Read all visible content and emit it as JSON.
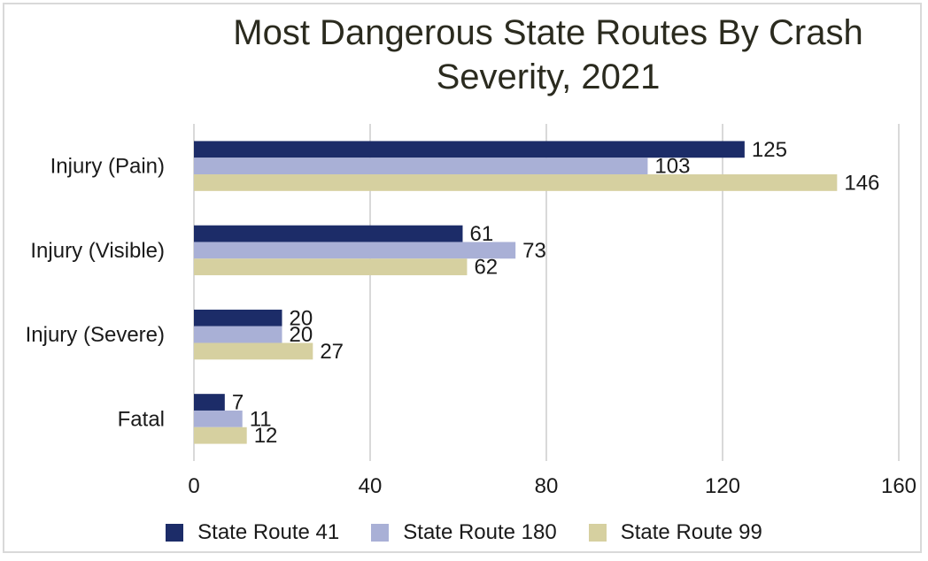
{
  "chart_data": {
    "type": "bar",
    "orientation": "horizontal",
    "title": "Most Dangerous State Routes By Crash Severity, 2021",
    "title_lines": [
      "Most Dangerous State Routes By Crash",
      "Severity, 2021"
    ],
    "categories": [
      "Injury (Pain)",
      "Injury (Visible)",
      "Injury (Severe)",
      "Fatal"
    ],
    "series": [
      {
        "name": "State Route 41",
        "values": [
          125,
          61,
          20,
          7
        ],
        "color": "#1c2c68"
      },
      {
        "name": "State Route 180",
        "values": [
          103,
          73,
          20,
          11
        ],
        "color": "#a9b0d6"
      },
      {
        "name": "State Route 99",
        "values": [
          146,
          62,
          27,
          12
        ],
        "color": "#d6d0a0"
      }
    ],
    "xlim": [
      0,
      160
    ],
    "xticks": [
      0,
      40,
      80,
      120,
      160
    ],
    "xlabel": "",
    "ylabel": "",
    "grid": "vertical",
    "legend_position": "bottom"
  }
}
